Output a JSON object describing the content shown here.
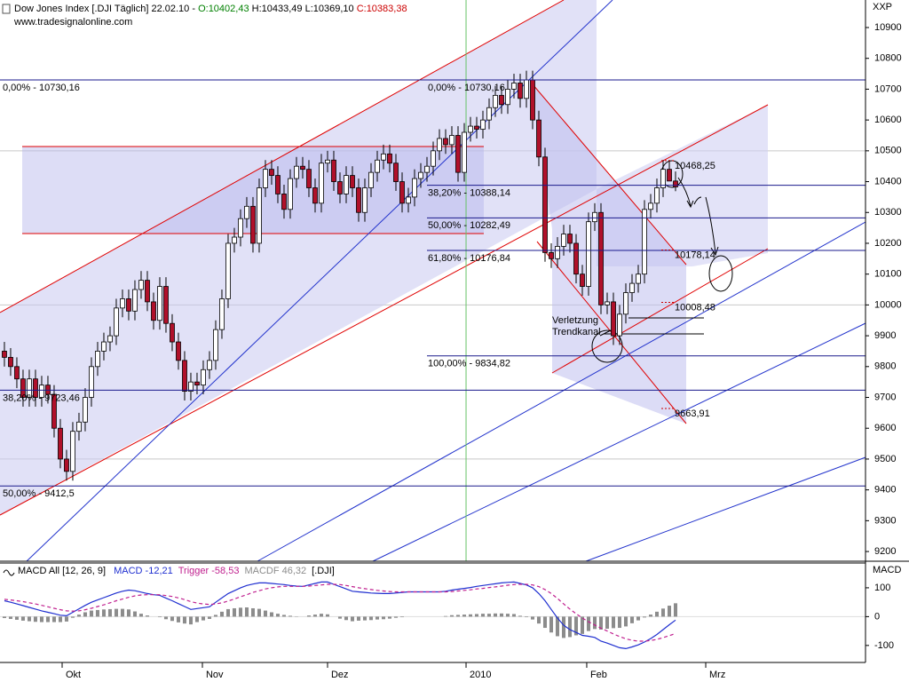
{
  "chart_data": [
    {
      "type": "candlestick",
      "title_parts": [
        {
          "text": "Dow Jones Index [.DJI  Täglich] 22.02.10 - ",
          "color": "#000000"
        },
        {
          "text": "O:10402,43",
          "color": "#008000"
        },
        {
          "text": " H:10433,49 L:10369,10 ",
          "color": "#000000"
        },
        {
          "text": "C:10383,38",
          "color": "#cc0000"
        }
      ],
      "subtitle": "www.tradesignalonline.com",
      "y_axis_label": "XXP",
      "up_color": "#ffffff",
      "down_color": "#b0102a",
      "x": [
        0,
        1,
        2,
        3,
        4,
        5,
        6,
        7,
        8,
        9,
        10,
        11,
        12,
        13,
        14,
        15,
        16,
        17,
        18,
        19,
        20,
        21,
        22,
        23,
        24,
        25,
        26,
        27,
        28,
        29,
        30,
        31,
        32,
        33,
        34,
        35,
        36,
        37,
        38,
        39,
        40,
        41,
        42,
        43,
        44,
        45,
        46,
        47,
        48,
        49,
        50,
        51,
        52,
        53,
        54,
        55,
        56,
        57,
        58,
        59,
        60,
        61,
        62,
        63,
        64,
        65,
        66,
        67,
        68,
        69,
        70,
        71,
        72,
        73,
        74,
        75,
        76,
        77,
        78,
        79,
        80,
        81,
        82,
        83,
        84,
        85,
        86,
        87,
        88,
        89,
        90,
        91,
        92,
        93,
        94,
        95,
        96,
        97,
        98,
        99,
        100,
        101,
        102,
        103,
        104,
        105,
        106,
        107,
        108
      ],
      "open": [
        9850,
        9830,
        9800,
        9760,
        9700,
        9760,
        9700,
        9740,
        9710,
        9600,
        9500,
        9460,
        9590,
        9620,
        9700,
        9800,
        9850,
        9880,
        9900,
        9990,
        10020,
        9980,
        10050,
        10080,
        10010,
        9950,
        10060,
        9940,
        9880,
        9820,
        9720,
        9750,
        9740,
        9790,
        9820,
        9920,
        10020,
        10200,
        10220,
        10280,
        10320,
        10200,
        10380,
        10440,
        10420,
        10360,
        10310,
        10410,
        10450,
        10440,
        10380,
        10330,
        10460,
        10470,
        10400,
        10360,
        10420,
        10380,
        10300,
        10380,
        10430,
        10470,
        10490,
        10460,
        10400,
        10330,
        10350,
        10410,
        10430,
        10450,
        10500,
        10540,
        10520,
        10550,
        10430,
        10560,
        10580,
        10570,
        10600,
        10640,
        10680,
        10650,
        10700,
        10720,
        10670,
        10730,
        10600,
        10480,
        10170,
        10150,
        10190,
        10230,
        10200,
        10100,
        10060,
        10270,
        10300,
        10000,
        10010,
        9900,
        9970,
        10040,
        10070,
        10100,
        10310,
        10330,
        10380,
        10440,
        10402
      ],
      "high": [
        9880,
        9860,
        9830,
        9790,
        9790,
        9790,
        9770,
        9770,
        9740,
        9630,
        9530,
        9620,
        9650,
        9730,
        9830,
        9880,
        9910,
        9930,
        10020,
        10050,
        10050,
        10080,
        10110,
        10110,
        10040,
        10090,
        10090,
        9970,
        9910,
        9850,
        9780,
        9780,
        9820,
        9850,
        9950,
        10050,
        10230,
        10250,
        10310,
        10350,
        10350,
        10410,
        10470,
        10470,
        10450,
        10390,
        10440,
        10480,
        10480,
        10470,
        10410,
        10490,
        10500,
        10500,
        10430,
        10450,
        10450,
        10410,
        10410,
        10460,
        10500,
        10520,
        10520,
        10490,
        10430,
        10380,
        10440,
        10460,
        10480,
        10530,
        10570,
        10570,
        10580,
        10580,
        10590,
        10610,
        10610,
        10630,
        10670,
        10710,
        10710,
        10730,
        10750,
        10750,
        10760,
        10760,
        10630,
        10510,
        10200,
        10220,
        10260,
        10260,
        10230,
        10130,
        10300,
        10330,
        10330,
        10040,
        10040,
        10000,
        10070,
        10100,
        10130,
        10340,
        10360,
        10410,
        10470,
        10470,
        10433
      ],
      "low": [
        9800,
        9770,
        9730,
        9670,
        9670,
        9670,
        9670,
        9680,
        9570,
        9470,
        9430,
        9430,
        9560,
        9590,
        9670,
        9770,
        9820,
        9850,
        9870,
        9960,
        9950,
        9950,
        10020,
        9980,
        9920,
        9920,
        9910,
        9850,
        9790,
        9690,
        9690,
        9710,
        9710,
        9760,
        9790,
        9890,
        9990,
        10170,
        10190,
        10250,
        10170,
        10170,
        10350,
        10390,
        10330,
        10280,
        10280,
        10380,
        10410,
        10350,
        10300,
        10300,
        10430,
        10370,
        10330,
        10330,
        10350,
        10270,
        10270,
        10350,
        10400,
        10440,
        10430,
        10370,
        10300,
        10300,
        10320,
        10380,
        10400,
        10420,
        10470,
        10490,
        10490,
        10400,
        10400,
        10530,
        10540,
        10540,
        10570,
        10610,
        10620,
        10620,
        10670,
        10640,
        10640,
        10570,
        10450,
        10140,
        10120,
        10120,
        10160,
        10170,
        10070,
        10030,
        10030,
        10240,
        9970,
        9970,
        9870,
        9870,
        9940,
        10010,
        10040,
        10070,
        10280,
        10300,
        10350,
        10410,
        10369
      ],
      "close": [
        9830,
        9800,
        9760,
        9700,
        9760,
        9700,
        9740,
        9710,
        9600,
        9500,
        9460,
        9590,
        9620,
        9700,
        9800,
        9850,
        9880,
        9900,
        9990,
        10020,
        9980,
        10050,
        10080,
        10010,
        9950,
        10060,
        9940,
        9880,
        9820,
        9720,
        9750,
        9740,
        9790,
        9820,
        9920,
        10020,
        10200,
        10220,
        10280,
        10320,
        10200,
        10380,
        10440,
        10420,
        10360,
        10310,
        10410,
        10450,
        10440,
        10380,
        10330,
        10460,
        10470,
        10400,
        10360,
        10420,
        10380,
        10300,
        10380,
        10430,
        10470,
        10490,
        10460,
        10400,
        10330,
        10350,
        10410,
        10430,
        10450,
        10500,
        10540,
        10520,
        10550,
        10430,
        10560,
        10580,
        10570,
        10600,
        10640,
        10680,
        10650,
        10700,
        10720,
        10670,
        10730,
        10600,
        10480,
        10170,
        10150,
        10190,
        10230,
        10200,
        10100,
        10060,
        10270,
        10300,
        10000,
        10010,
        9900,
        9970,
        10040,
        10070,
        10100,
        10310,
        10330,
        10380,
        10440,
        10402,
        10383
      ],
      "xlim": [
        -0.71,
        138.57
      ],
      "xticks": [
        {
          "value": 9.29,
          "label": "Okt"
        },
        {
          "value": 31.86,
          "label": "Nov"
        },
        {
          "value": 52,
          "label": "Dez"
        },
        {
          "value": 74.29,
          "label": "2010"
        },
        {
          "value": 93.71,
          "label": "Feb"
        },
        {
          "value": 112.86,
          "label": "Mrz"
        }
      ],
      "xgrid": [
        74.29
      ],
      "xgrid_color": "#66c266",
      "ylim": [
        9168.5,
        10989.3
      ],
      "yticks": [
        10900,
        10800,
        10700,
        10600,
        10500,
        10400,
        10300,
        10200,
        10100,
        10000,
        9900,
        9800,
        9700,
        9600,
        9500,
        9400,
        9300,
        9200
      ],
      "ygrid": [
        10500,
        10000,
        9500
      ],
      "ygrid_color": "#c8c8c8",
      "fib_color": "#1a1a8c",
      "fib_left": [
        {
          "label": "0,00% - 10730,16",
          "value": 10730.16
        },
        {
          "label": "38,20% - 9723,46",
          "value": 9723.46
        },
        {
          "label": "50,00% - 9412,5",
          "value": 9412.5
        }
      ],
      "fib_right": [
        {
          "label": "0,00% - 10730,16",
          "value": 10730.16
        },
        {
          "label": "38,20% - 10388,14",
          "value": 10388.14
        },
        {
          "label": "50,00% - 10282,49",
          "value": 10282.49
        },
        {
          "label": "61,80% - 10176,84",
          "value": 10176.84
        },
        {
          "label": "100,00% - 9834,82",
          "value": 9834.82
        }
      ],
      "price_marks_color": "#cc0000",
      "price_marks": [
        {
          "label": "10468,25",
          "value": 10468.25
        },
        {
          "label": "10178,14",
          "value": 10178.14
        },
        {
          "label": "10008,48",
          "value": 10008.48
        },
        {
          "label": "9663,91",
          "value": 9663.91
        }
      ],
      "annotation": [
        "Verletzung",
        "Trendkanal"
      ]
    },
    {
      "type": "line",
      "title": "MACD All [12, 26, 9]",
      "suffix": "[.DJI]",
      "y_axis_label": "MACD",
      "ylim": [
        -159,
        186
      ],
      "yticks": [
        100,
        0,
        -100
      ],
      "series": [
        {
          "name": "MACD -12,21",
          "color": "#1f2fd0",
          "style": "line",
          "values": [
            55,
            50,
            44,
            38,
            32,
            26,
            20,
            15,
            10,
            5,
            3,
            15,
            27,
            39,
            50,
            58,
            66,
            74,
            82,
            88,
            92,
            90,
            85,
            80,
            76,
            74,
            64,
            55,
            45,
            35,
            25,
            28,
            31,
            34,
            50,
            65,
            80,
            90,
            100,
            108,
            113,
            117,
            117,
            115,
            113,
            111,
            108,
            106,
            105,
            110,
            115,
            120,
            120,
            112,
            104,
            96,
            88,
            86,
            84,
            82,
            81,
            80,
            80,
            82,
            84,
            86,
            86,
            86,
            86,
            86,
            86,
            88,
            92,
            95,
            98,
            101,
            105,
            108,
            111,
            114,
            117,
            119,
            120,
            115,
            110,
            100,
            80,
            55,
            25,
            -5,
            -30,
            -45,
            -55,
            -65,
            -68,
            -72,
            -85,
            -92,
            -100,
            -108,
            -111,
            -105,
            -98,
            -88,
            -76,
            -62,
            -45,
            -28,
            -12.21
          ]
        },
        {
          "name": "Trigger -58,53",
          "color": "#c0208f",
          "style": "dashed",
          "values": [
            60,
            58,
            55,
            52,
            48,
            44,
            39,
            34,
            29,
            24,
            20,
            19,
            20,
            24,
            29,
            35,
            41,
            48,
            55,
            61,
            67,
            72,
            75,
            76,
            76,
            76,
            73,
            70,
            65,
            59,
            52,
            47,
            44,
            42,
            44,
            48,
            54,
            61,
            69,
            76,
            84,
            90,
            96,
            100,
            103,
            105,
            105,
            105,
            105,
            106,
            108,
            110,
            112,
            112,
            111,
            108,
            104,
            100,
            97,
            94,
            91,
            89,
            87,
            86,
            86,
            86,
            86,
            86,
            86,
            86,
            86,
            86,
            87,
            89,
            91,
            93,
            96,
            98,
            101,
            103,
            106,
            109,
            111,
            112,
            112,
            110,
            104,
            94,
            80,
            63,
            44,
            26,
            10,
            -5,
            -18,
            -29,
            -40,
            -50,
            -60,
            -69,
            -77,
            -82,
            -85,
            -85,
            -83,
            -79,
            -73,
            -66,
            -58.53
          ]
        },
        {
          "name": "MACDF 46,32",
          "color": "#8c8c8c",
          "style": "bar",
          "values": [
            -5,
            -8,
            -11,
            -14,
            -16,
            -18,
            -19,
            -19,
            -19,
            -19,
            -17,
            -4,
            7,
            15,
            21,
            23,
            25,
            26,
            27,
            27,
            25,
            18,
            10,
            4,
            0,
            -2,
            -9,
            -15,
            -20,
            -24,
            -27,
            -19,
            -13,
            -8,
            6,
            17,
            26,
            29,
            31,
            32,
            29,
            27,
            21,
            15,
            10,
            6,
            3,
            1,
            0,
            4,
            7,
            10,
            8,
            0,
            -7,
            -12,
            -16,
            -14,
            -13,
            -12,
            -10,
            -9,
            -7,
            -4,
            -2,
            0,
            0,
            0,
            0,
            0,
            0,
            2,
            5,
            6,
            7,
            8,
            9,
            10,
            10,
            11,
            11,
            10,
            9,
            3,
            -2,
            -10,
            -24,
            -39,
            -55,
            -68,
            -74,
            -71,
            -65,
            -60,
            -50,
            -43,
            -45,
            -42,
            -40,
            -39,
            -34,
            -23,
            -13,
            -3,
            7,
            17,
            28,
            38,
            46.32
          ]
        }
      ]
    }
  ]
}
